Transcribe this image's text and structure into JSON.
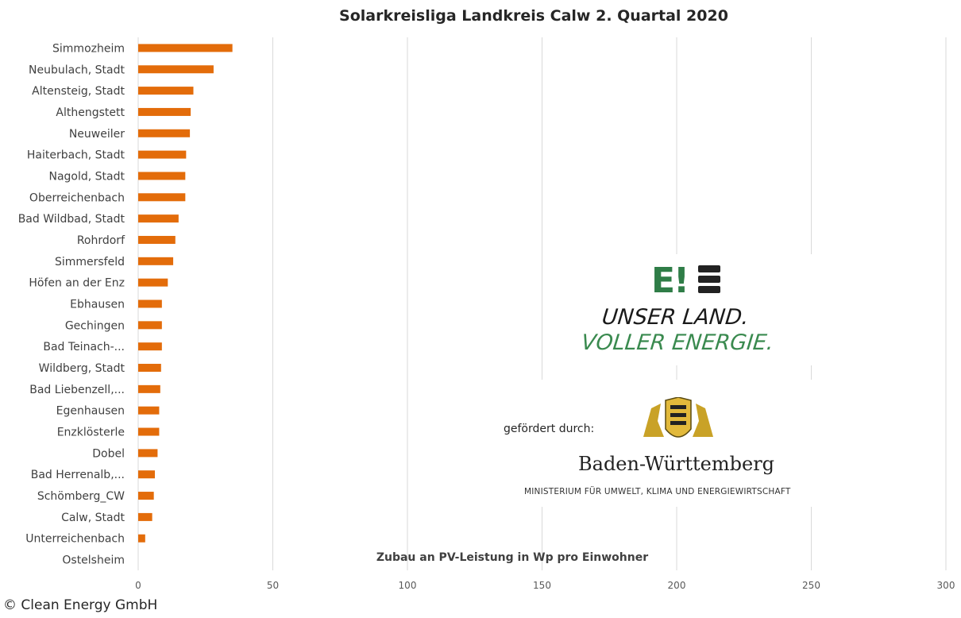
{
  "chart_data": {
    "type": "bar",
    "orientation": "horizontal",
    "title": "Solarkreisliga Landkreis Calw 2. Quartal 2020",
    "xlabel": "Zubau an PV-Leistung in Wp pro Einwohner",
    "ylabel": "",
    "xlim": [
      0,
      300
    ],
    "xticks": [
      0,
      50,
      100,
      150,
      200,
      250,
      300
    ],
    "grid": "vertical",
    "bar_color": "#e36c0a",
    "categories": [
      "Simmozheim",
      "Neubulach, Stadt",
      "Altensteig, Stadt",
      "Althengstett",
      "Neuweiler",
      "Haiterbach, Stadt",
      "Nagold, Stadt",
      "Oberreichenbach",
      "Bad Wildbad, Stadt",
      "Rohrdorf",
      "Simmersfeld",
      "Höfen an der Enz",
      "Ebhausen",
      "Gechingen",
      "Bad Teinach-...",
      "Wildberg, Stadt",
      "Bad Liebenzell,...",
      "Egenhausen",
      "Enzklösterle",
      "Dobel",
      "Bad Herrenalb,...",
      "Schömberg_CW",
      "Calw, Stadt",
      "Unterreichenbach",
      "Ostelsheim"
    ],
    "values": [
      35,
      28,
      20.5,
      19.5,
      19.2,
      17.8,
      17.5,
      17.5,
      15,
      13.8,
      13,
      11,
      8.8,
      8.8,
      8.8,
      8.5,
      8.2,
      7.8,
      7.8,
      7.2,
      6.2,
      5.8,
      5.2,
      2.6,
      0
    ]
  },
  "logo": {
    "mark": "E!",
    "slogan_line1": "UNSER LAND.",
    "slogan_line2": "VOLLER ENERGIE.",
    "green": "#2f7d47"
  },
  "sponsor": {
    "label": "gefördert durch:",
    "state": "Baden-Württemberg",
    "ministry": "MINISTERIUM FÜR UMWELT, KLIMA UND ENERGIEWIRTSCHAFT"
  },
  "copyright": "© Clean Energy GmbH"
}
